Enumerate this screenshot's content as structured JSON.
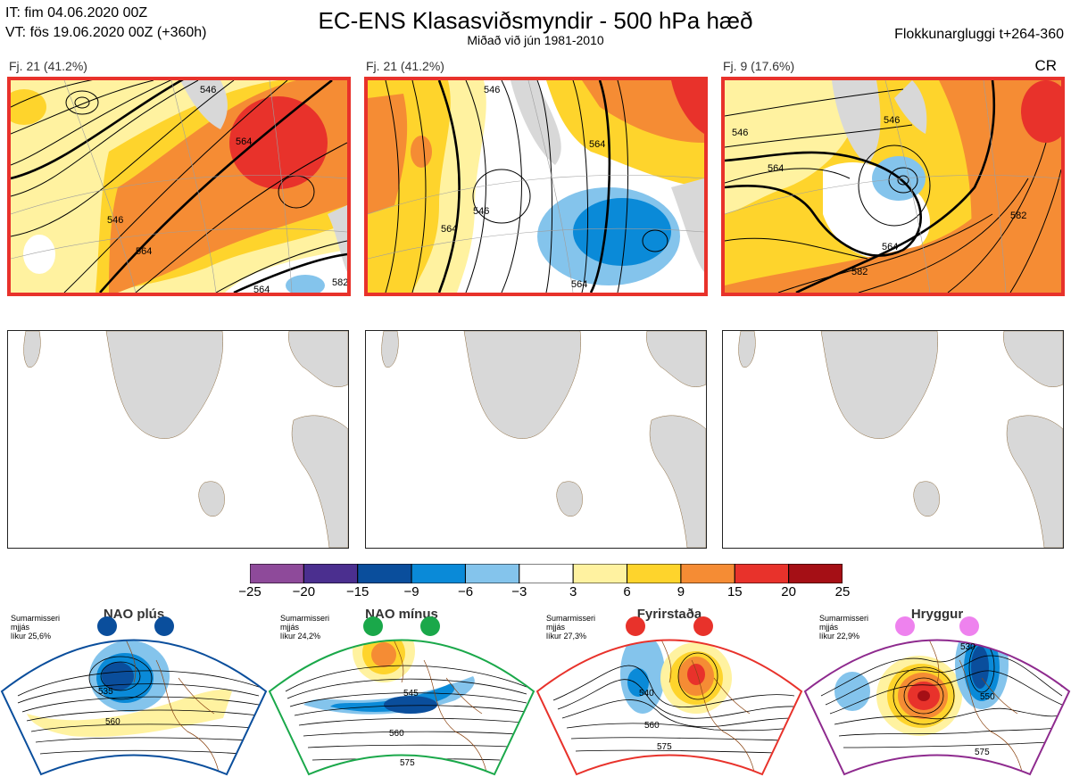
{
  "header": {
    "it_line": "IT: fim 04.06.2020 00Z",
    "vt_line": "VT: fös 19.06.2020 00Z  (+360h)",
    "title": "EC-ENS Klasasviðsmyndir - 500 hPa hæð",
    "subtitle": "Miðað við jún 1981-2010",
    "window": "Flokkunargluggi t+264-360",
    "cr": "CR"
  },
  "clusters": [
    {
      "label": "Fj. 21 (41.2%)",
      "contours": [
        "546",
        "564",
        "546",
        "564",
        "564",
        "582"
      ]
    },
    {
      "label": "Fj. 21 (41.2%)",
      "contours": [
        "546",
        "564",
        "546",
        "564",
        "564"
      ]
    },
    {
      "label": "Fj. 9 (17.6%)",
      "contours": [
        "546",
        "564",
        "546",
        "582",
        "564",
        "582"
      ]
    }
  ],
  "colorbar": {
    "colors": [
      "#8e4a9a",
      "#4b2f8f",
      "#0a4e9c",
      "#0a8ad8",
      "#84c4ec",
      "#ffffff",
      "#fff2a0",
      "#fed42c",
      "#f58c34",
      "#e8322b",
      "#a50f15"
    ],
    "ticks": [
      "−25",
      "−20",
      "−15",
      "−9",
      "−6",
      "−3",
      "3",
      "6",
      "9",
      "15",
      "20",
      "25"
    ]
  },
  "regimes": [
    {
      "name": "NAO plús",
      "season": "Sumarmisseri",
      "mean": "mjjás",
      "prob": "líkur 25,6%",
      "color": "#0a4e9c",
      "contours": [
        "535",
        "560"
      ]
    },
    {
      "name": "NAO mínus",
      "season": "Sumarmisseri",
      "mean": "mjjás",
      "prob": "líkur 24,2%",
      "color": "#1aa84a",
      "contours": [
        "545",
        "560",
        "575"
      ]
    },
    {
      "name": "Fyrirstaða",
      "season": "Sumarmisseri",
      "mean": "mjjás",
      "prob": "líkur 27,3%",
      "color": "#e8322b",
      "contours": [
        "540",
        "560",
        "575"
      ]
    },
    {
      "name": "Hryggur",
      "season": "Sumarmisseri",
      "mean": "mjjás",
      "prob": "líkur 22,9%",
      "color": "#8e2a8e",
      "contours": [
        "530",
        "550",
        "575"
      ]
    }
  ]
}
